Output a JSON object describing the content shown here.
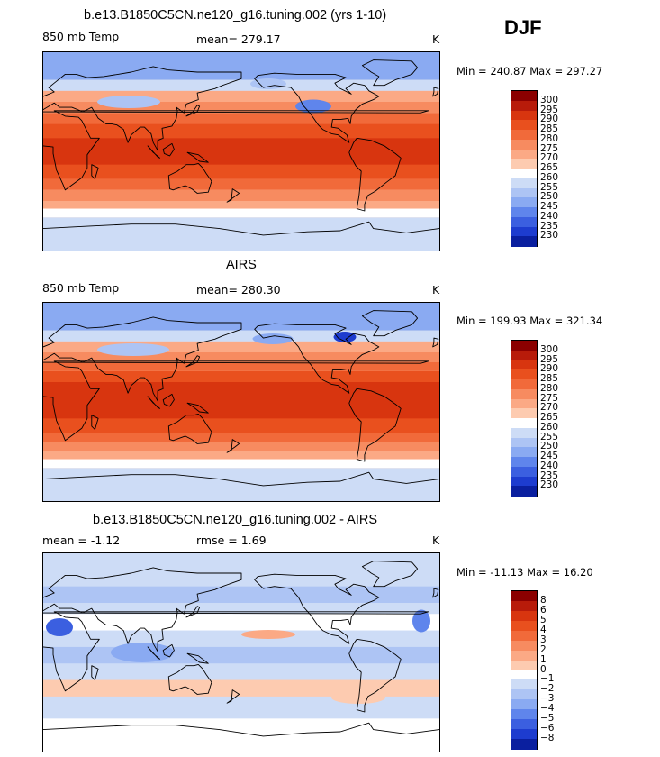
{
  "season": "DJF",
  "panels": [
    {
      "title": "b.e13.B1850C5CN.ne120_g16.tuning.002 (yrs 1-10)",
      "left_label": "850 mb Temp",
      "mid_label": "mean= 279.17",
      "units": "K",
      "minmax": "Min = 240.87 Max = 297.27",
      "kind": "model"
    },
    {
      "title": "AIRS",
      "left_label": "850 mb Temp",
      "mid_label": "mean= 280.30",
      "units": "K",
      "minmax": "Min = 199.93 Max = 321.34",
      "kind": "obs"
    },
    {
      "title": "b.e13.B1850C5CN.ne120_g16.tuning.002 - AIRS",
      "left_label": "mean =   -1.12",
      "mid_label": "rmse =    1.69",
      "units": "K",
      "minmax": "Min = -11.13 Max =  16.20",
      "kind": "diff"
    }
  ],
  "chart_data": [
    {
      "type": "heatmap",
      "title": "b.e13.B1850C5CN.ne120_g16.tuning.002 (yrs 1-10)",
      "variable": "850 mb Temp",
      "units": "K",
      "mean": 279.17,
      "min": 240.87,
      "max": 297.27,
      "colorbar_levels": [
        300,
        295,
        290,
        285,
        280,
        275,
        270,
        265,
        260,
        255,
        250,
        245,
        240,
        235,
        230
      ],
      "colorbar_colors": [
        "#8b0000",
        "#b81b0a",
        "#d8350f",
        "#e9501e",
        "#f16a3a",
        "#f78b60",
        "#fba985",
        "#fdcbb0",
        "#ffffff",
        "#cddcf6",
        "#adc4f4",
        "#8aaaf2",
        "#5f85ec",
        "#3b5fe0",
        "#1d3ccf",
        "#0a1f9f"
      ]
    },
    {
      "type": "heatmap",
      "title": "AIRS",
      "variable": "850 mb Temp",
      "units": "K",
      "mean": 280.3,
      "min": 199.93,
      "max": 321.34,
      "colorbar_levels": [
        300,
        295,
        290,
        285,
        280,
        275,
        270,
        265,
        260,
        255,
        250,
        245,
        240,
        235,
        230
      ],
      "colorbar_colors": [
        "#8b0000",
        "#b81b0a",
        "#d8350f",
        "#e9501e",
        "#f16a3a",
        "#f78b60",
        "#fba985",
        "#fdcbb0",
        "#ffffff",
        "#cddcf6",
        "#adc4f4",
        "#8aaaf2",
        "#5f85ec",
        "#3b5fe0",
        "#1d3ccf",
        "#0a1f9f"
      ]
    },
    {
      "type": "heatmap",
      "title": "b.e13.B1850C5CN.ne120_g16.tuning.002 - AIRS",
      "units": "K",
      "mean": -1.12,
      "rmse": 1.69,
      "min": -11.13,
      "max": 16.2,
      "colorbar_levels": [
        "8",
        "6",
        "5",
        "4",
        "3",
        "2",
        "1",
        "0",
        "−1",
        "−2",
        "−3",
        "−4",
        "−5",
        "−6",
        "−8"
      ],
      "colorbar_colors": [
        "#8b0000",
        "#b81b0a",
        "#d8350f",
        "#e9501e",
        "#f16a3a",
        "#f78b60",
        "#fba985",
        "#fdcbb0",
        "#ffffff",
        "#cddcf6",
        "#adc4f4",
        "#8aaaf2",
        "#5f85ec",
        "#3b5fe0",
        "#1d3ccf",
        "#0a1f9f"
      ]
    }
  ]
}
